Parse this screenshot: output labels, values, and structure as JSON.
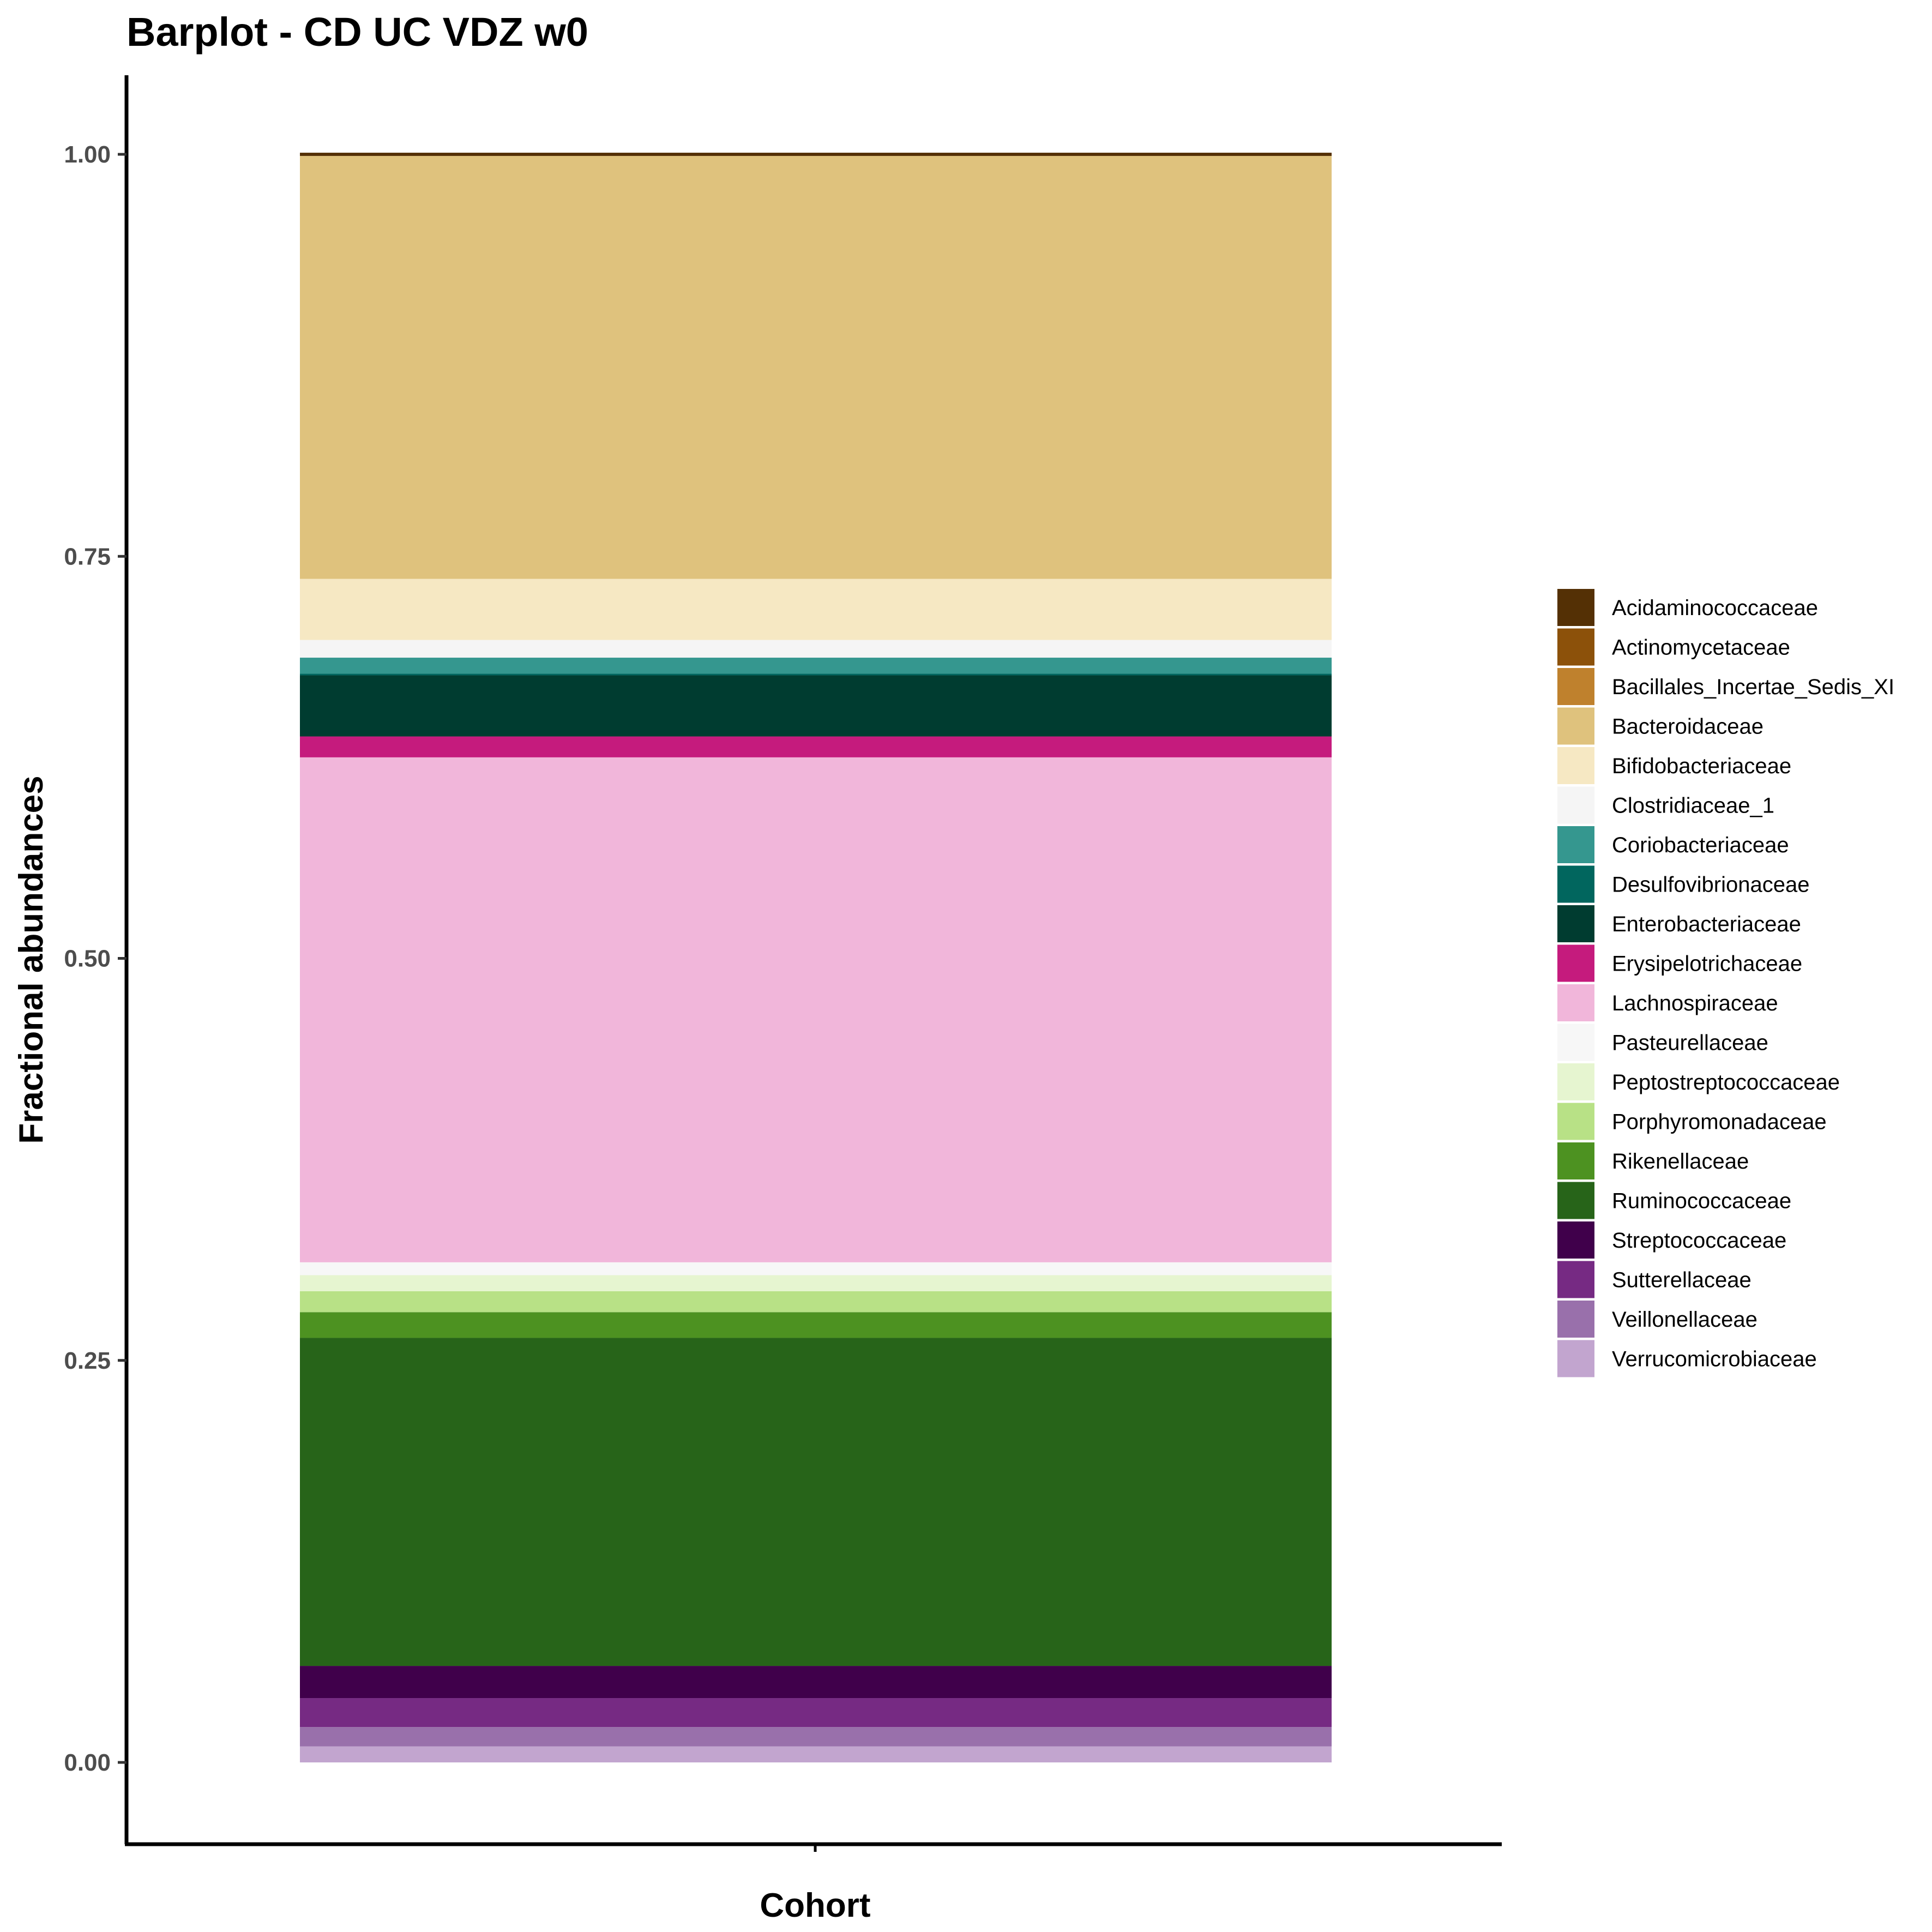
{
  "chart_data": {
    "type": "bar",
    "stacked": true,
    "title": "Barplot - CD UC VDZ w0",
    "xlabel": "Cohort",
    "ylabel": "Fractional abundances",
    "ylim": [
      -0.05,
      1.05
    ],
    "yticks": [
      "0.00",
      "0.25",
      "0.50",
      "0.75",
      "1.00"
    ],
    "categories": [
      ""
    ],
    "legend_position": "right",
    "grid": false,
    "series": [
      {
        "name": "Acidaminococcaceae",
        "color": "#543005",
        "values": [
          0.002
        ]
      },
      {
        "name": "Actinomycetaceae",
        "color": "#8C510A",
        "values": [
          0.0
        ]
      },
      {
        "name": "Bacillales_Incertae_Sedis_XI",
        "color": "#BF812D",
        "values": [
          0.0
        ]
      },
      {
        "name": "Bacteroidaceae",
        "color": "#DFC27D",
        "values": [
          0.263
        ]
      },
      {
        "name": "Bifidobacteriaceae",
        "color": "#F6E8C3",
        "values": [
          0.038
        ]
      },
      {
        "name": "Clostridiaceae_1",
        "color": "#F5F5F5",
        "values": [
          0.011
        ]
      },
      {
        "name": "Coriobacteriaceae",
        "color": "#35978F",
        "values": [
          0.01
        ]
      },
      {
        "name": "Desulfovibrionaceae",
        "color": "#01665E",
        "values": [
          0.001
        ]
      },
      {
        "name": "Enterobacteriaceae",
        "color": "#003C30",
        "values": [
          0.038
        ]
      },
      {
        "name": "Erysipelotrichaceae",
        "color": "#C51B7D",
        "values": [
          0.013
        ]
      },
      {
        "name": "Lachnospiraceae",
        "color": "#F1B6DA",
        "values": [
          0.314
        ]
      },
      {
        "name": "Pasteurellaceae",
        "color": "#F7F7F7",
        "values": [
          0.008
        ]
      },
      {
        "name": "Peptostreptococcaceae",
        "color": "#E6F5D0",
        "values": [
          0.01
        ]
      },
      {
        "name": "Porphyromonadaceae",
        "color": "#B8E186",
        "values": [
          0.013
        ]
      },
      {
        "name": "Rikenellaceae",
        "color": "#4D9221",
        "values": [
          0.016
        ]
      },
      {
        "name": "Ruminococcaceae",
        "color": "#276419",
        "values": [
          0.204
        ]
      },
      {
        "name": "Streptococcaceae",
        "color": "#40004B",
        "values": [
          0.02
        ]
      },
      {
        "name": "Sutterellaceae",
        "color": "#762A83",
        "values": [
          0.018
        ]
      },
      {
        "name": "Veillonellaceae",
        "color": "#9970AB",
        "values": [
          0.012
        ]
      },
      {
        "name": "Verrucomicrobiaceae",
        "color": "#C2A5CF",
        "values": [
          0.01
        ]
      }
    ]
  }
}
